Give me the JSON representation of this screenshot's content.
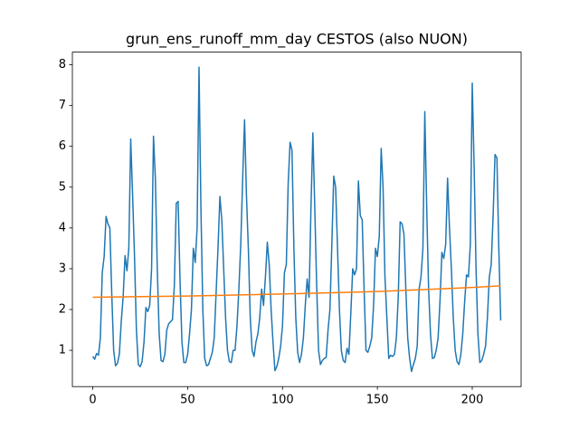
{
  "chart_data": {
    "type": "line",
    "title": "grun_ens_runoff_mm_day CESTOS (also NUON)",
    "x": [
      0,
      1,
      2,
      3,
      4,
      5,
      6,
      7,
      8,
      9,
      10,
      11,
      12,
      13,
      14,
      15,
      16,
      17,
      18,
      19,
      20,
      21,
      22,
      23,
      24,
      25,
      26,
      27,
      28,
      29,
      30,
      31,
      32,
      33,
      34,
      35,
      36,
      37,
      38,
      39,
      40,
      41,
      42,
      43,
      44,
      45,
      46,
      47,
      48,
      49,
      50,
      51,
      52,
      53,
      54,
      55,
      56,
      57,
      58,
      59,
      60,
      61,
      62,
      63,
      64,
      65,
      66,
      67,
      68,
      69,
      70,
      71,
      72,
      73,
      74,
      75,
      76,
      77,
      78,
      79,
      80,
      81,
      82,
      83,
      84,
      85,
      86,
      87,
      88,
      89,
      90,
      91,
      92,
      93,
      94,
      95,
      96,
      97,
      98,
      99,
      100,
      101,
      102,
      103,
      104,
      105,
      106,
      107,
      108,
      109,
      110,
      111,
      112,
      113,
      114,
      115,
      116,
      117,
      118,
      119,
      120,
      121,
      122,
      123,
      124,
      125,
      126,
      127,
      128,
      129,
      130,
      131,
      132,
      133,
      134,
      135,
      136,
      137,
      138,
      139,
      140,
      141,
      142,
      143,
      144,
      145,
      146,
      147,
      148,
      149,
      150,
      151,
      152,
      153,
      154,
      155,
      156,
      157,
      158,
      159,
      160,
      161,
      162,
      163,
      164,
      165,
      166,
      167,
      168,
      169,
      170,
      171,
      172,
      173,
      174,
      175,
      176,
      177,
      178,
      179,
      180,
      181,
      182,
      183,
      184,
      185,
      186,
      187,
      188,
      189,
      190,
      191,
      192,
      193,
      194,
      195,
      196,
      197,
      198,
      199,
      200,
      201,
      202,
      203,
      204,
      205,
      206,
      207,
      208,
      209,
      210,
      211,
      212,
      213,
      214,
      215
    ],
    "series": [
      {
        "color": "#1f77b4",
        "values": [
          0.85,
          0.78,
          0.92,
          0.88,
          1.3,
          2.9,
          3.3,
          4.28,
          4.1,
          4.0,
          2.4,
          1.0,
          0.62,
          0.68,
          0.9,
          1.7,
          2.3,
          3.32,
          2.95,
          3.5,
          6.18,
          4.8,
          3.3,
          1.5,
          0.65,
          0.6,
          0.72,
          1.2,
          2.05,
          1.95,
          2.1,
          3.0,
          6.25,
          5.2,
          3.0,
          1.4,
          0.75,
          0.72,
          0.9,
          1.5,
          1.65,
          1.7,
          1.75,
          2.6,
          4.6,
          4.65,
          2.7,
          1.2,
          0.7,
          0.7,
          0.9,
          1.4,
          2.0,
          3.5,
          3.15,
          4.0,
          7.94,
          4.5,
          2.0,
          0.8,
          0.62,
          0.65,
          0.8,
          0.95,
          1.3,
          2.4,
          3.5,
          4.77,
          4.2,
          3.0,
          1.8,
          1.0,
          0.72,
          0.7,
          1.0,
          1.0,
          1.6,
          2.5,
          3.6,
          5.2,
          6.65,
          4.8,
          3.5,
          1.8,
          1.0,
          0.85,
          1.2,
          1.4,
          1.8,
          2.5,
          2.1,
          2.8,
          3.65,
          3.1,
          2.0,
          1.2,
          0.5,
          0.6,
          0.8,
          1.1,
          1.6,
          2.9,
          3.1,
          5.1,
          6.1,
          5.9,
          3.5,
          1.8,
          0.95,
          0.7,
          0.9,
          1.3,
          2.1,
          2.75,
          2.3,
          4.5,
          6.33,
          4.5,
          2.6,
          1.0,
          0.65,
          0.75,
          0.8,
          0.82,
          1.5,
          2.0,
          3.6,
          5.27,
          5.0,
          3.5,
          2.0,
          1.0,
          0.75,
          0.7,
          1.05,
          0.9,
          1.9,
          3.0,
          2.85,
          3.0,
          5.15,
          4.3,
          4.2,
          2.5,
          1.0,
          0.95,
          1.1,
          1.3,
          2.1,
          3.5,
          3.3,
          3.8,
          5.95,
          5.0,
          2.8,
          1.8,
          0.8,
          0.88,
          0.85,
          0.9,
          1.3,
          2.3,
          4.15,
          4.1,
          3.85,
          2.5,
          1.3,
          0.8,
          0.48,
          0.65,
          0.8,
          1.1,
          2.5,
          2.8,
          3.5,
          6.85,
          4.5,
          2.5,
          1.4,
          0.8,
          0.82,
          1.0,
          1.3,
          2.2,
          3.4,
          3.25,
          3.6,
          5.22,
          4.0,
          3.0,
          1.8,
          1.0,
          0.72,
          0.65,
          0.9,
          1.4,
          2.2,
          2.85,
          2.8,
          3.6,
          7.55,
          5.5,
          3.0,
          1.4,
          0.7,
          0.75,
          0.9,
          1.1,
          1.8,
          2.8,
          3.1,
          4.3,
          5.8,
          5.72,
          3.5,
          1.73
        ]
      },
      {
        "color": "#ff7f0e",
        "x": [
          0,
          50,
          100,
          150,
          200,
          215
        ],
        "values": [
          2.3,
          2.33,
          2.38,
          2.44,
          2.54,
          2.58
        ]
      }
    ],
    "xlim": [
      -10.75,
      225.75
    ],
    "xticks": [
      0,
      50,
      100,
      150,
      200
    ],
    "ylim": [
      0.11,
      8.31
    ],
    "yticks": [
      1,
      2,
      3,
      4,
      5,
      6,
      7,
      8
    ]
  }
}
